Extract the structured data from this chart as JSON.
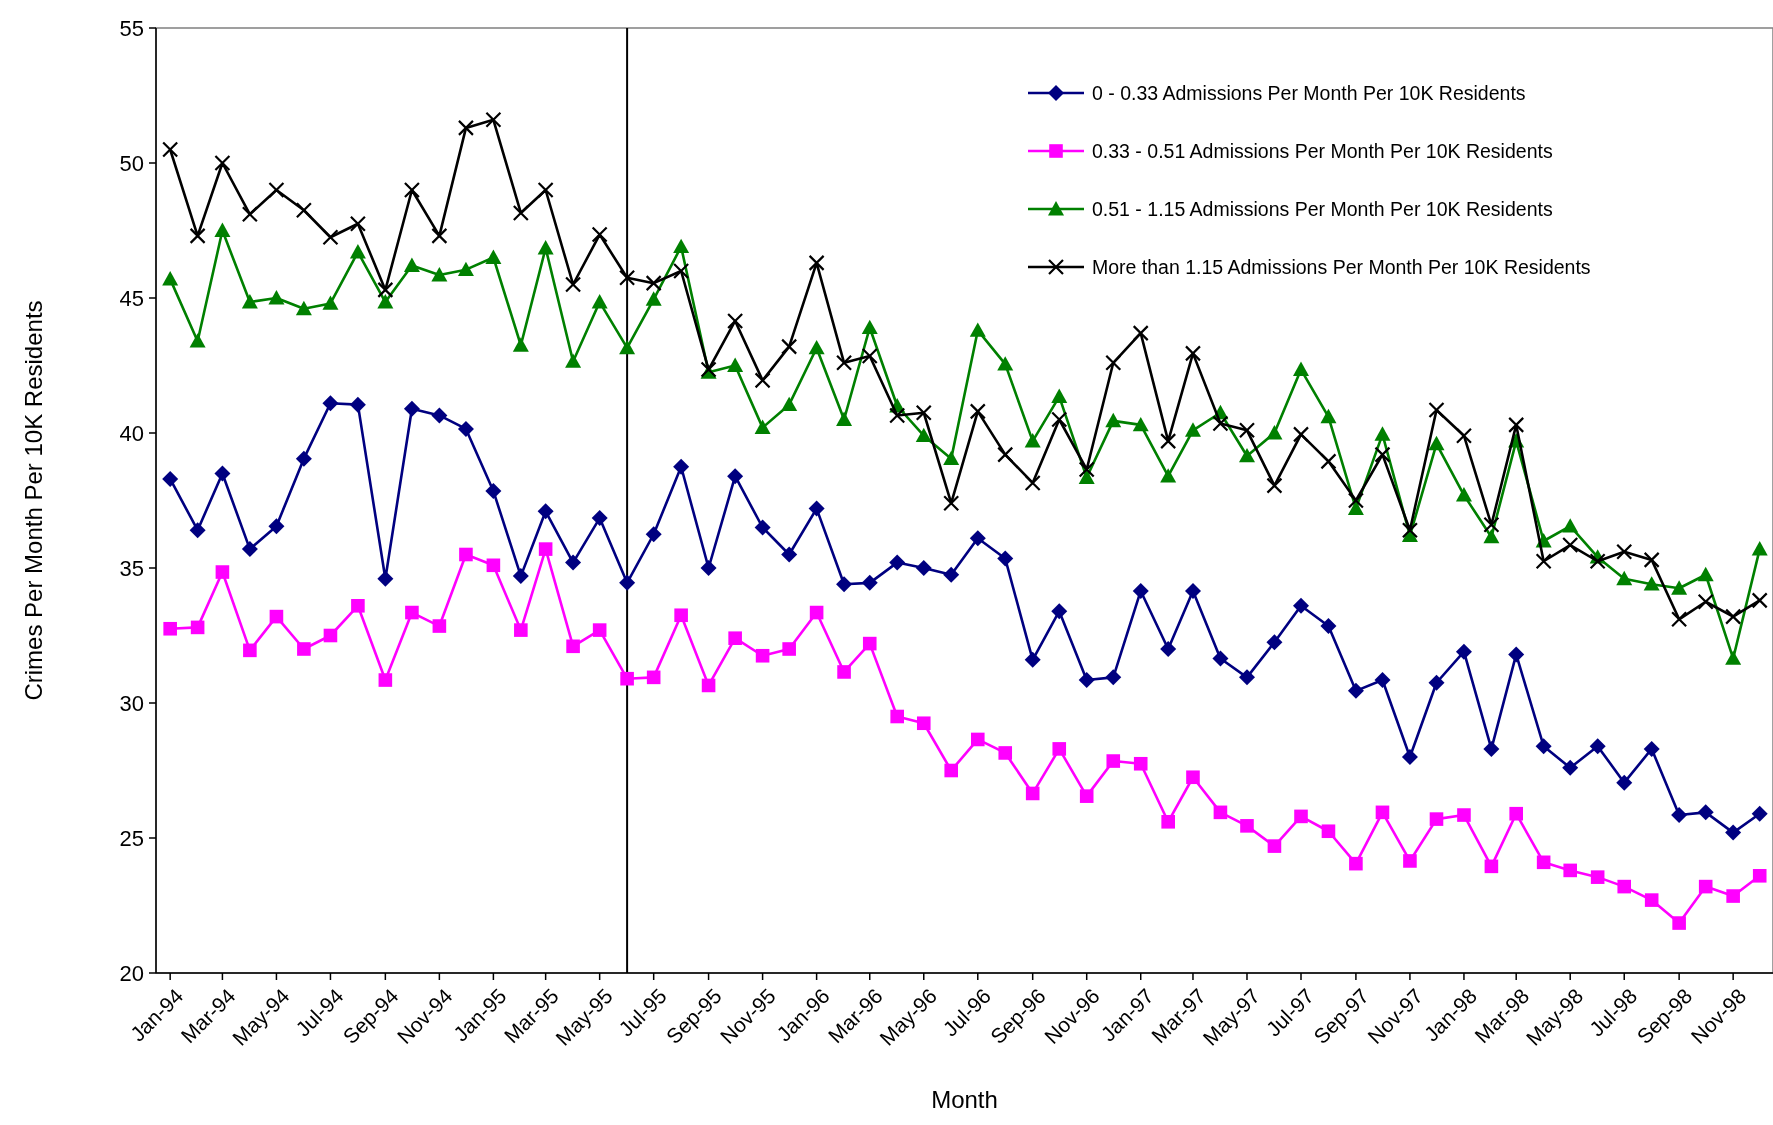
{
  "chart_data": {
    "type": "line",
    "xlabel": "Month",
    "ylabel": "Crimes Per Month Per 10K Residents",
    "x": [
      "1994-01",
      "1994-02",
      "1994-03",
      "1994-04",
      "1994-05",
      "1994-06",
      "1994-07",
      "1994-08",
      "1994-09",
      "1994-10",
      "1994-11",
      "1994-12",
      "1995-01",
      "1995-02",
      "1995-03",
      "1995-04",
      "1995-05",
      "1995-06",
      "1995-07",
      "1995-08",
      "1995-09",
      "1995-10",
      "1995-11",
      "1995-12",
      "1996-01",
      "1996-02",
      "1996-03",
      "1996-04",
      "1996-05",
      "1996-06",
      "1996-07",
      "1996-08",
      "1996-09",
      "1996-10",
      "1996-11",
      "1996-12",
      "1997-01",
      "1997-02",
      "1997-03",
      "1997-04",
      "1997-05",
      "1997-06",
      "1997-07",
      "1997-08",
      "1997-09",
      "1997-10",
      "1997-11",
      "1997-12",
      "1998-01",
      "1998-02",
      "1998-03",
      "1998-04",
      "1998-05",
      "1998-06",
      "1998-07",
      "1998-08",
      "1998-09",
      "1998-10",
      "1998-11",
      "1998-12"
    ],
    "series": [
      {
        "name": "0 - 0.33 Admissions Per Month Per 10K Residents",
        "color": "#000080",
        "marker": "diamond",
        "values": [
          38.3,
          36.4,
          38.5,
          35.7,
          36.55,
          39.05,
          41.1,
          41.05,
          34.6,
          40.9,
          40.65,
          40.15,
          37.85,
          34.7,
          37.1,
          35.2,
          36.85,
          34.45,
          36.25,
          38.75,
          35.0,
          38.4,
          36.5,
          35.5,
          37.2,
          34.4,
          34.45,
          35.2,
          35.0,
          34.75,
          36.1,
          35.35,
          31.6,
          33.4,
          30.85,
          30.95,
          34.15,
          32.0,
          34.15,
          31.65,
          30.95,
          32.25,
          33.6,
          32.85,
          30.45,
          30.85,
          28.0,
          30.75,
          31.9,
          28.3,
          31.8,
          28.4,
          27.6,
          28.4,
          27.05,
          28.3,
          25.85,
          25.95,
          25.2,
          25.9
        ]
      },
      {
        "name": "0.33 - 0.51 Admissions Per Month Per 10K Residents",
        "color": "#ff00ff",
        "marker": "square",
        "values": [
          32.75,
          32.8,
          34.85,
          31.95,
          33.2,
          32.0,
          32.5,
          33.6,
          30.85,
          33.35,
          32.85,
          35.5,
          35.1,
          32.7,
          35.7,
          32.1,
          32.7,
          30.9,
          30.95,
          33.25,
          30.65,
          32.4,
          31.75,
          32.0,
          33.35,
          31.15,
          32.2,
          29.5,
          29.25,
          27.5,
          28.65,
          28.15,
          26.65,
          28.3,
          26.55,
          27.85,
          27.75,
          25.6,
          27.25,
          25.95,
          25.45,
          24.7,
          25.8,
          25.25,
          24.05,
          25.95,
          24.15,
          25.7,
          25.85,
          23.95,
          25.9,
          24.1,
          23.8,
          23.55,
          23.2,
          22.7,
          21.85,
          23.2,
          22.85,
          23.6
        ]
      },
      {
        "name": "0.51 - 1.15 Admissions Per Month Per 10K Residents",
        "color": "#008000",
        "marker": "triangle",
        "values": [
          45.7,
          43.4,
          47.5,
          44.85,
          45.0,
          44.6,
          44.8,
          46.7,
          44.85,
          46.2,
          45.85,
          46.05,
          46.5,
          43.25,
          46.85,
          42.65,
          44.85,
          43.15,
          44.95,
          46.9,
          42.25,
          42.5,
          40.2,
          41.05,
          43.15,
          40.5,
          43.9,
          41.0,
          39.9,
          39.05,
          43.8,
          42.55,
          39.7,
          41.35,
          38.35,
          40.45,
          40.3,
          38.4,
          40.1,
          40.75,
          39.15,
          40.0,
          42.35,
          40.6,
          37.2,
          39.95,
          36.2,
          39.6,
          37.7,
          36.15,
          39.7,
          36.0,
          36.55,
          35.4,
          34.6,
          34.4,
          34.25,
          34.75,
          31.65,
          35.7
        ]
      },
      {
        "name": "More than 1.15 Admissions Per Month Per 10K Residents",
        "color": "#000000",
        "marker": "cross",
        "values": [
          50.5,
          47.3,
          50.0,
          48.1,
          49.0,
          48.25,
          47.25,
          47.75,
          45.3,
          49.0,
          47.3,
          51.3,
          51.6,
          48.15,
          49.0,
          45.5,
          47.35,
          45.75,
          45.55,
          46.0,
          42.35,
          44.15,
          41.95,
          43.2,
          46.3,
          42.6,
          42.85,
          40.65,
          40.75,
          37.4,
          40.8,
          39.2,
          38.15,
          40.5,
          38.65,
          42.6,
          43.7,
          39.7,
          42.95,
          40.35,
          40.1,
          38.05,
          39.95,
          38.95,
          37.5,
          39.2,
          36.4,
          40.85,
          39.9,
          36.6,
          40.3,
          35.25,
          35.85,
          35.25,
          35.6,
          35.3,
          33.1,
          33.75,
          33.2,
          33.8
        ]
      }
    ],
    "xlim": [
      "1993-12-16",
      "1998-12-16"
    ],
    "xticks": [
      {
        "value": "1994-01",
        "label": "Jan-94"
      },
      {
        "value": "1994-03",
        "label": "Mar-94"
      },
      {
        "value": "1994-05",
        "label": "May-94"
      },
      {
        "value": "1994-07",
        "label": "Jul-94"
      },
      {
        "value": "1994-09",
        "label": "Sep-94"
      },
      {
        "value": "1994-11",
        "label": "Nov-94"
      },
      {
        "value": "1995-01",
        "label": "Jan-95"
      },
      {
        "value": "1995-03",
        "label": "Mar-95"
      },
      {
        "value": "1995-05",
        "label": "May-95"
      },
      {
        "value": "1995-07",
        "label": "Jul-95"
      },
      {
        "value": "1995-09",
        "label": "Sep-95"
      },
      {
        "value": "1995-11",
        "label": "Nov-95"
      },
      {
        "value": "1996-01",
        "label": "Jan-96"
      },
      {
        "value": "1996-03",
        "label": "Mar-96"
      },
      {
        "value": "1996-05",
        "label": "May-96"
      },
      {
        "value": "1996-07",
        "label": "Jul-96"
      },
      {
        "value": "1996-09",
        "label": "Sep-96"
      },
      {
        "value": "1996-11",
        "label": "Nov-96"
      },
      {
        "value": "1997-01",
        "label": "Jan-97"
      },
      {
        "value": "1997-03",
        "label": "Mar-97"
      },
      {
        "value": "1997-05",
        "label": "May-97"
      },
      {
        "value": "1997-07",
        "label": "Jul-97"
      },
      {
        "value": "1997-09",
        "label": "Sep-97"
      },
      {
        "value": "1997-11",
        "label": "Nov-97"
      },
      {
        "value": "1998-01",
        "label": "Jan-98"
      },
      {
        "value": "1998-03",
        "label": "Mar-98"
      },
      {
        "value": "1998-05",
        "label": "May-98"
      },
      {
        "value": "1998-07",
        "label": "Jul-98"
      },
      {
        "value": "1998-09",
        "label": "Sep-98"
      },
      {
        "value": "1998-11",
        "label": "Nov-98"
      }
    ],
    "ylim": [
      20,
      55
    ],
    "yticks": [
      20,
      25,
      30,
      35,
      40,
      45,
      50,
      55
    ],
    "ref_lines": [
      {
        "axis": "x",
        "value": "1995-06",
        "color": "#000000"
      }
    ],
    "grid": false,
    "legend": "top right",
    "line_style": "solid"
  }
}
